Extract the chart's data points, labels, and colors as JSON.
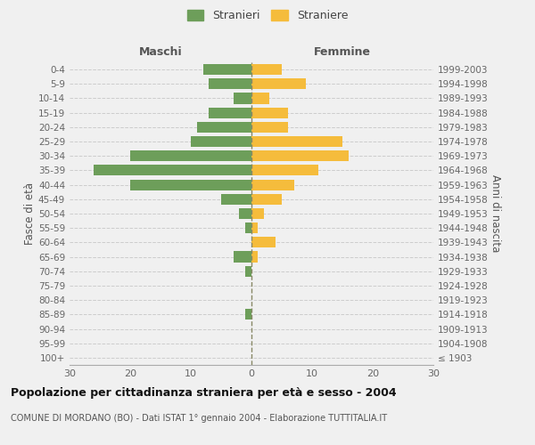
{
  "age_groups": [
    "100+",
    "95-99",
    "90-94",
    "85-89",
    "80-84",
    "75-79",
    "70-74",
    "65-69",
    "60-64",
    "55-59",
    "50-54",
    "45-49",
    "40-44",
    "35-39",
    "30-34",
    "25-29",
    "20-24",
    "15-19",
    "10-14",
    "5-9",
    "0-4"
  ],
  "birth_years": [
    "≤ 1903",
    "1904-1908",
    "1909-1913",
    "1914-1918",
    "1919-1923",
    "1924-1928",
    "1929-1933",
    "1934-1938",
    "1939-1943",
    "1944-1948",
    "1949-1953",
    "1954-1958",
    "1959-1963",
    "1964-1968",
    "1969-1973",
    "1974-1978",
    "1979-1983",
    "1984-1988",
    "1989-1993",
    "1994-1998",
    "1999-2003"
  ],
  "males": [
    0,
    0,
    0,
    1,
    0,
    0,
    1,
    3,
    0,
    1,
    2,
    5,
    20,
    26,
    20,
    10,
    9,
    7,
    3,
    7,
    8
  ],
  "females": [
    0,
    0,
    0,
    0,
    0,
    0,
    0,
    1,
    4,
    1,
    2,
    5,
    7,
    11,
    16,
    15,
    6,
    6,
    3,
    9,
    5
  ],
  "male_color": "#6d9e5a",
  "female_color": "#f5bc3c",
  "background_color": "#f0f0f0",
  "title": "Popolazione per cittadinanza straniera per età e sesso - 2004",
  "subtitle": "COMUNE DI MORDANO (BO) - Dati ISTAT 1° gennaio 2004 - Elaborazione TUTTITALIA.IT",
  "ylabel_left": "Fasce di età",
  "ylabel_right": "Anni di nascita",
  "xlabel_left": "Maschi",
  "xlabel_right": "Femmine",
  "xlim": 30,
  "legend_stranieri": "Stranieri",
  "legend_straniere": "Straniere"
}
